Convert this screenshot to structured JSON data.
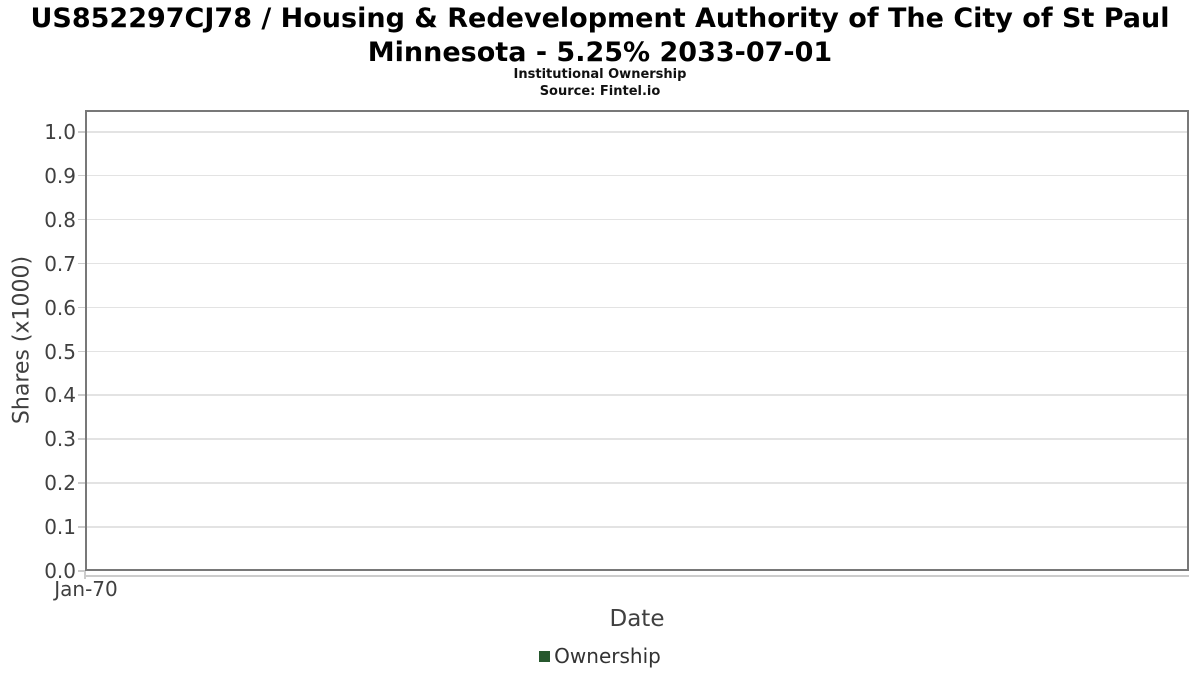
{
  "chart_data": {
    "type": "line",
    "title": "US852297CJ78 / Housing & Redevelopment Authority of The City of St Paul Minnesota - 5.25% 2033-07-01",
    "title_lines": [
      "US852297CJ78 / Housing & Redevelopment Authority of The City of St Paul",
      "Minnesota - 5.25% 2033-07-01"
    ],
    "subtitle": "Institutional Ownership",
    "source": "Source: Fintel.io",
    "xlabel": "Date",
    "ylabel": "Shares (x1000)",
    "x_ticks": [
      "Jan-70"
    ],
    "y_ticks": [
      0.0,
      0.1,
      0.2,
      0.3,
      0.4,
      0.5,
      0.6,
      0.7,
      0.8,
      0.9,
      1.0
    ],
    "ylim": [
      0.0,
      1.05
    ],
    "grid": true,
    "legend_position": "bottom-center",
    "series": [
      {
        "name": "Ownership",
        "color": "#27582e",
        "x": [],
        "values": []
      }
    ]
  },
  "colors": {
    "background": "#ffffff",
    "plot_border": "#787878",
    "gridline": "#e3e3e3",
    "tick": "#cccccc",
    "title_text": "#000000",
    "axis_text": "#404040",
    "legend_text": "#333333",
    "series_ownership": "#27582e"
  }
}
